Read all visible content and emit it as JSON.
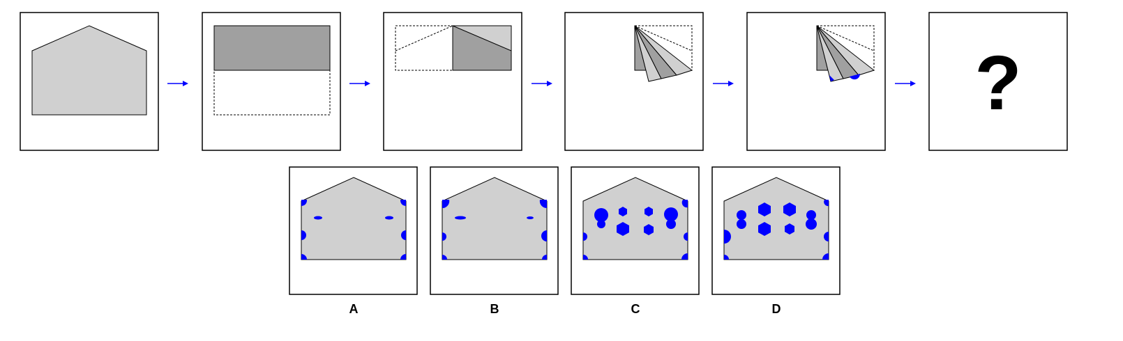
{
  "question_mark": "?",
  "options": [
    {
      "label": "A"
    },
    {
      "label": "B"
    },
    {
      "label": "C"
    },
    {
      "label": "D"
    }
  ],
  "colors": {
    "paper": "#d0d0d0",
    "paper_dark": "#a0a0a0",
    "hole": "#0000ff",
    "arrow": "#0000ff",
    "outline": "#000000"
  }
}
